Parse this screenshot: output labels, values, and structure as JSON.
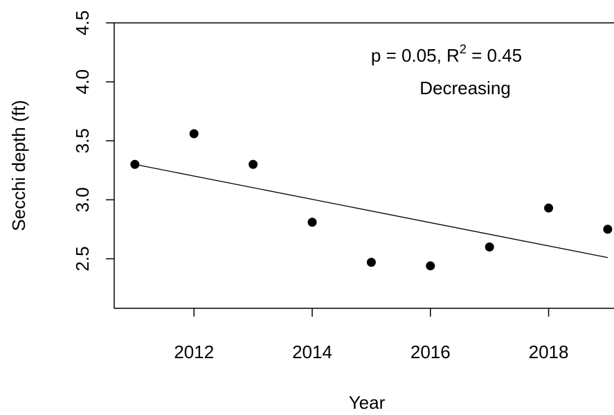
{
  "chart_data": {
    "type": "scatter",
    "xlabel": "Year",
    "ylabel": "Secchi depth (ft)",
    "xlim": [
      2010.65,
      2019.2
    ],
    "ylim": [
      2.08,
      4.5
    ],
    "x_ticks": [
      2012,
      2014,
      2016,
      2018
    ],
    "y_ticks": [
      2.5,
      3.0,
      3.5,
      4.0,
      4.5
    ],
    "x_tick_labels": [
      "2012",
      "2014",
      "2016",
      "2018"
    ],
    "y_tick_labels": [
      "2.5",
      "3.0",
      "3.5",
      "4.0",
      "4.5"
    ],
    "grid": false,
    "points": [
      {
        "x": 2011,
        "y": 3.3
      },
      {
        "x": 2012,
        "y": 3.56
      },
      {
        "x": 2013,
        "y": 3.3
      },
      {
        "x": 2014,
        "y": 2.81
      },
      {
        "x": 2015,
        "y": 2.47
      },
      {
        "x": 2016,
        "y": 2.44
      },
      {
        "x": 2017,
        "y": 2.6
      },
      {
        "x": 2018,
        "y": 2.93
      },
      {
        "x": 2019,
        "y": 2.75
      }
    ],
    "trend_line": {
      "x": [
        2011,
        2019
      ],
      "y": [
        3.3,
        2.51
      ]
    },
    "annotation": {
      "stats_prefix": "p = 0.05, R",
      "stats_superscript": "2",
      "stats_suffix": " = 0.45",
      "trend_label": "Decreasing"
    }
  }
}
